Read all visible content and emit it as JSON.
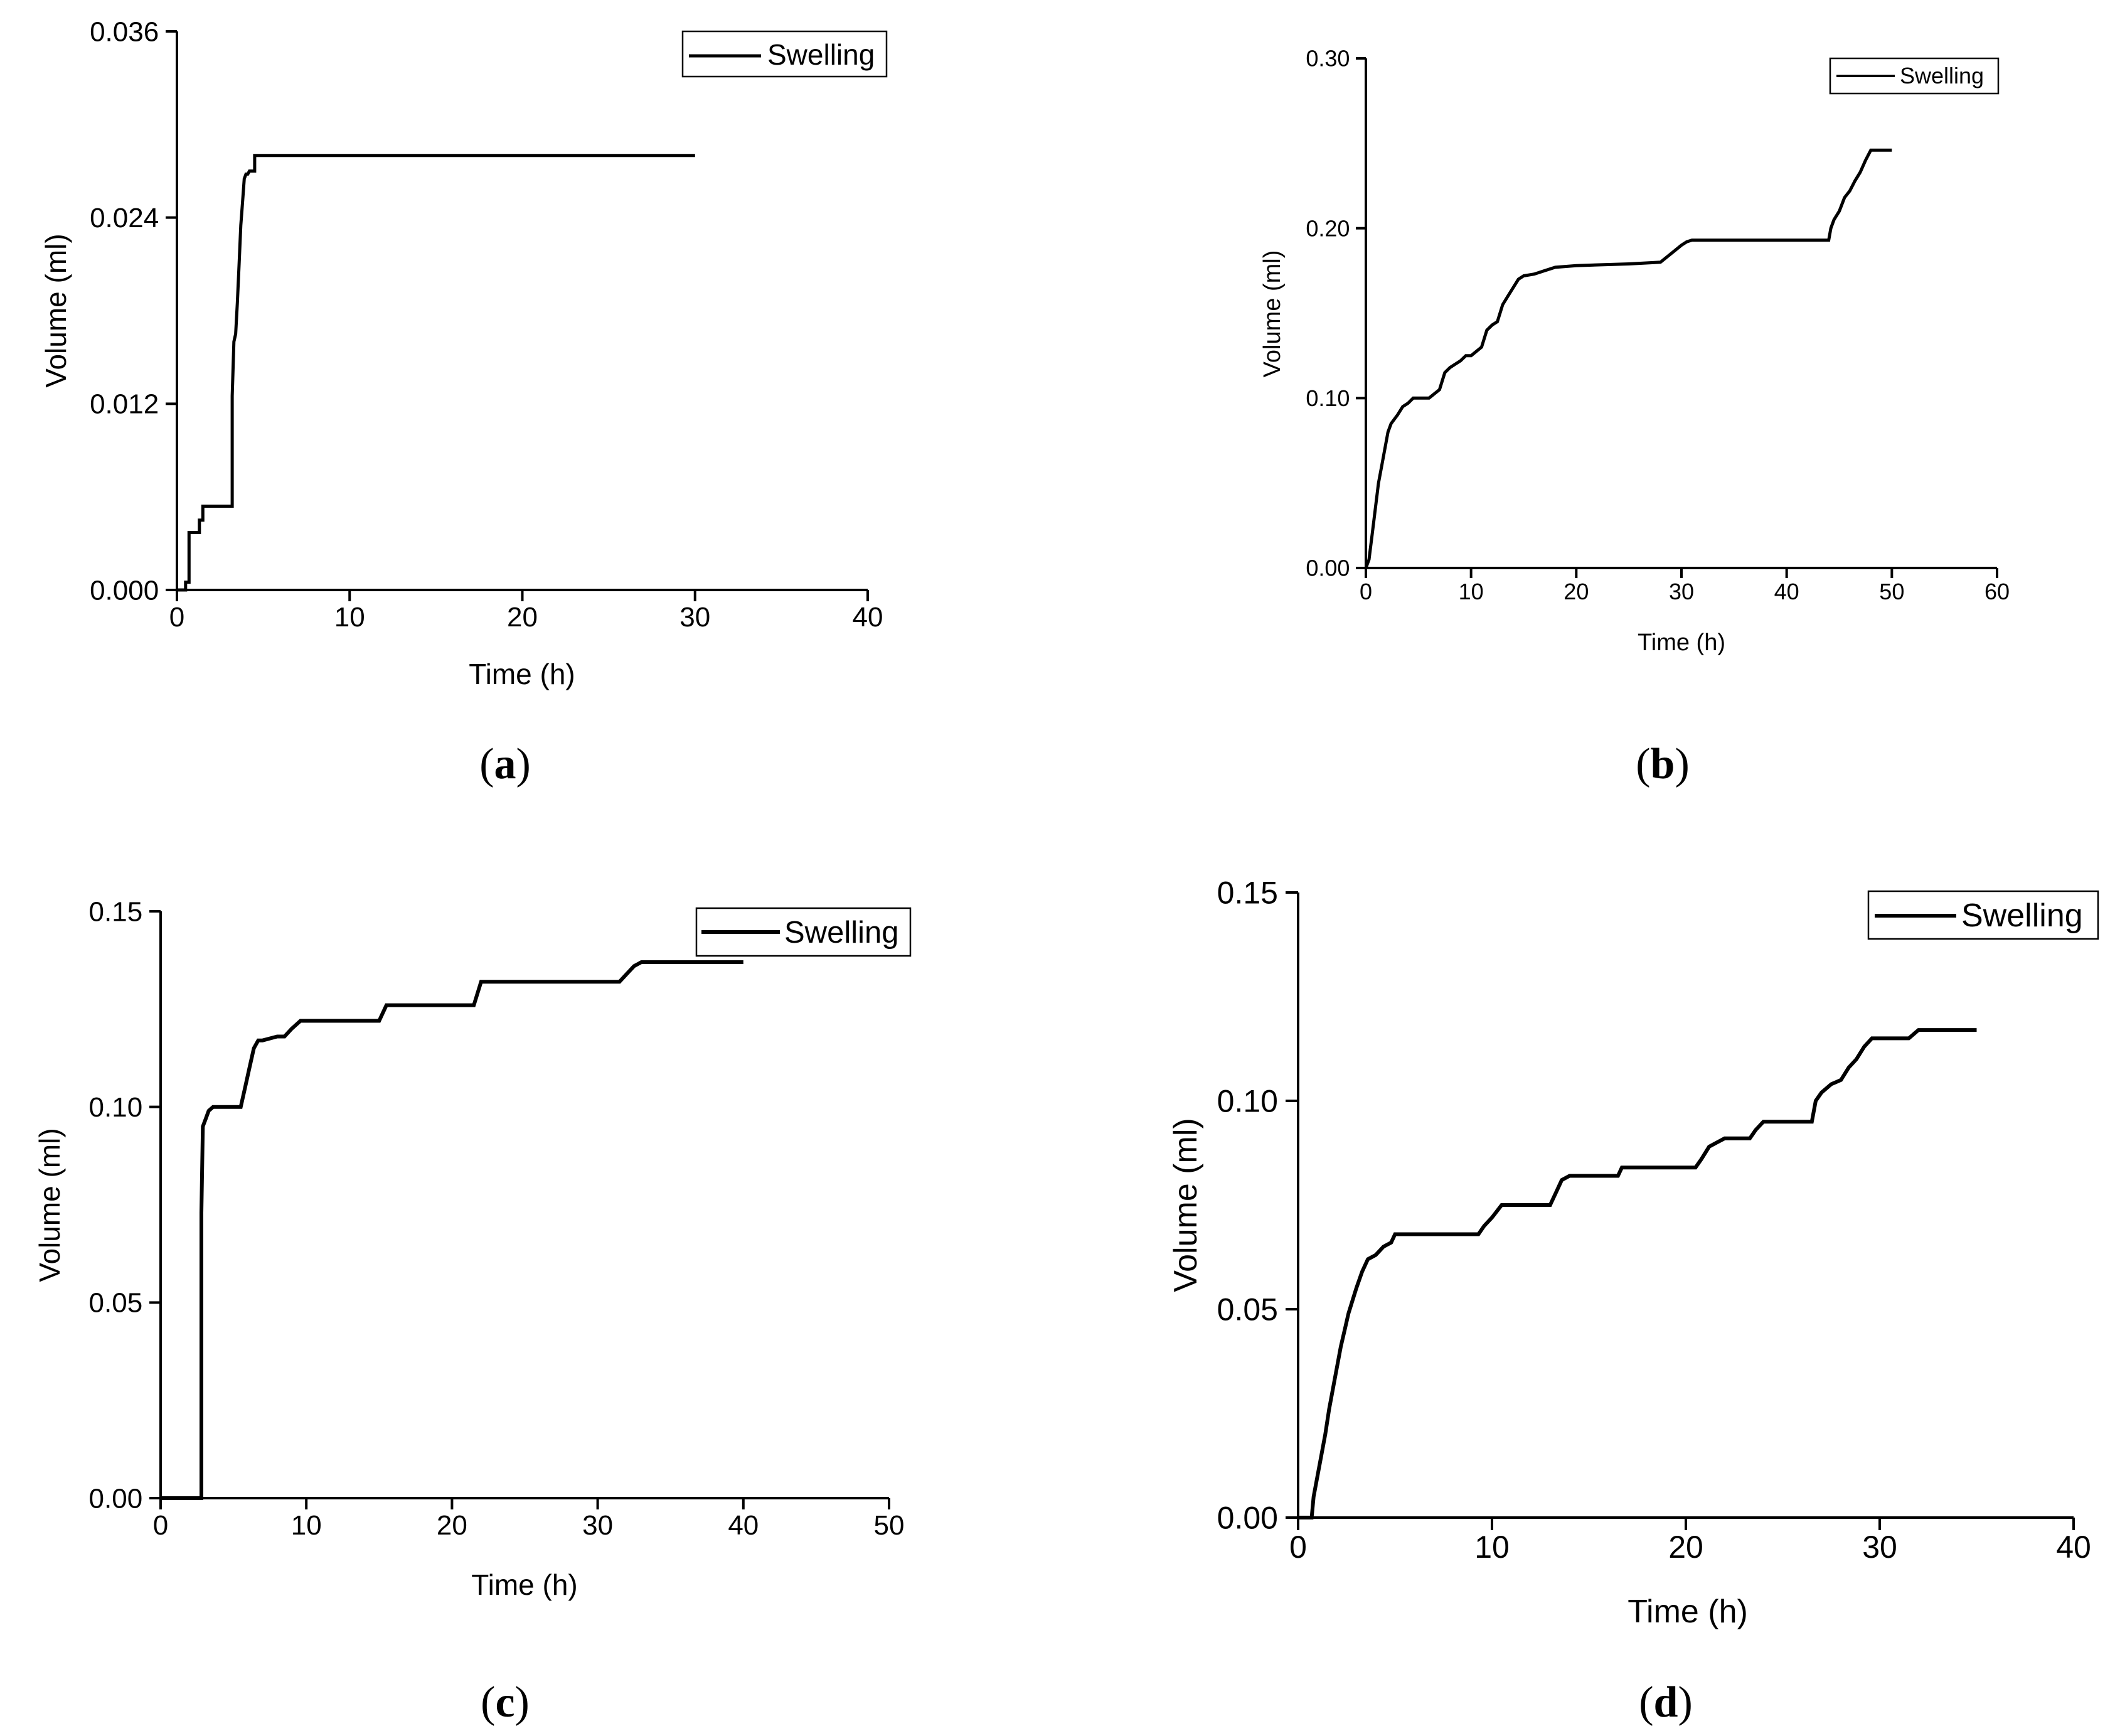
{
  "chart_data": [
    {
      "type": "line",
      "panel": "a",
      "caption_open": "(",
      "caption_letter": "a",
      "caption_close": ")",
      "xlabel": "Time (h)",
      "ylabel": "Volume (ml)",
      "xlim": [
        0,
        40
      ],
      "ylim": [
        0,
        0.036
      ],
      "xticks": [
        0,
        10,
        20,
        30,
        40
      ],
      "yticks": [
        0.0,
        0.012,
        0.024,
        0.036
      ],
      "ytick_labels": [
        "0.000",
        "0.012",
        "0.024",
        "0.036"
      ],
      "legend": [
        "Swelling"
      ],
      "legend_position": "top-right",
      "series": [
        {
          "name": "Swelling",
          "x": [
            0,
            0.5,
            0.5,
            0.7,
            0.7,
            1.3,
            1.3,
            1.5,
            1.5,
            3.2,
            3.2,
            3.3,
            3.4,
            3.5,
            3.6,
            3.7,
            3.8,
            3.9,
            4.0,
            4.1,
            4.2,
            4.3,
            4.5,
            4.5,
            30
          ],
          "y": [
            0,
            0,
            0.0005,
            0.0005,
            0.0037,
            0.0037,
            0.0045,
            0.0045,
            0.0054,
            0.0054,
            0.0125,
            0.016,
            0.0165,
            0.0185,
            0.021,
            0.0235,
            0.025,
            0.0265,
            0.0268,
            0.0268,
            0.027,
            0.027,
            0.027,
            0.028,
            0.028
          ]
        }
      ]
    },
    {
      "type": "line",
      "panel": "b",
      "caption_open": "(",
      "caption_letter": "b",
      "caption_close": ")",
      "xlabel": "Time (h)",
      "ylabel": "Volume (ml)",
      "xlim": [
        0,
        60
      ],
      "ylim": [
        0,
        0.3
      ],
      "xticks": [
        0,
        10,
        20,
        30,
        40,
        50,
        60
      ],
      "yticks": [
        0.0,
        0.1,
        0.2,
        0.3
      ],
      "ytick_labels": [
        "0.00",
        "0.10",
        "0.20",
        "0.30"
      ],
      "legend": [
        "Swelling"
      ],
      "legend_position": "top-right",
      "series": [
        {
          "name": "Swelling",
          "x": [
            0,
            0.3,
            0.6,
            0.9,
            1.2,
            1.5,
            1.8,
            2.1,
            2.4,
            3,
            3.5,
            4,
            4.5,
            5,
            6,
            7,
            7.5,
            8,
            8.5,
            9,
            9.5,
            10,
            11,
            11.5,
            12,
            12.5,
            13,
            13.5,
            14,
            14.5,
            15,
            16,
            17,
            18,
            20,
            25,
            28,
            29,
            30,
            30.5,
            31,
            35,
            40,
            44,
            44.2,
            44.5,
            45,
            45.5,
            46,
            46.5,
            47,
            47.5,
            48,
            49,
            50
          ],
          "y": [
            0,
            0.005,
            0.02,
            0.035,
            0.05,
            0.06,
            0.07,
            0.08,
            0.085,
            0.09,
            0.095,
            0.097,
            0.1,
            0.1,
            0.1,
            0.105,
            0.115,
            0.118,
            0.12,
            0.122,
            0.125,
            0.125,
            0.13,
            0.14,
            0.143,
            0.145,
            0.155,
            0.16,
            0.165,
            0.17,
            0.172,
            0.173,
            0.175,
            0.177,
            0.178,
            0.179,
            0.18,
            0.185,
            0.19,
            0.192,
            0.193,
            0.193,
            0.193,
            0.193,
            0.2,
            0.205,
            0.21,
            0.218,
            0.222,
            0.228,
            0.233,
            0.24,
            0.246,
            0.246,
            0.246
          ]
        }
      ]
    },
    {
      "type": "line",
      "panel": "c",
      "caption_open": "(",
      "caption_letter": "c",
      "caption_close": ")",
      "xlabel": "Time (h)",
      "ylabel": "Volume (ml)",
      "xlim": [
        0,
        50
      ],
      "ylim": [
        0,
        0.15
      ],
      "xticks": [
        0,
        10,
        20,
        30,
        40,
        50
      ],
      "yticks": [
        0.0,
        0.05,
        0.1,
        0.15
      ],
      "ytick_labels": [
        "0.00",
        "0.05",
        "0.10",
        "0.15"
      ],
      "legend": [
        "Swelling"
      ],
      "legend_position": "top-right",
      "series": [
        {
          "name": "Swelling",
          "x": [
            0,
            2.8,
            2.8,
            2.9,
            3.1,
            3.3,
            3.6,
            4,
            5.5,
            5.8,
            6.1,
            6.4,
            6.7,
            7,
            8,
            8.5,
            9,
            9.3,
            9.6,
            10,
            15,
            15.5,
            21.5,
            22,
            31.5,
            32,
            32.5,
            33,
            40
          ],
          "y": [
            0,
            0,
            0.073,
            0.095,
            0.097,
            0.099,
            0.1,
            0.1,
            0.1,
            0.105,
            0.11,
            0.115,
            0.117,
            0.117,
            0.118,
            0.118,
            0.12,
            0.121,
            0.122,
            0.122,
            0.122,
            0.126,
            0.126,
            0.132,
            0.132,
            0.134,
            0.136,
            0.137,
            0.137
          ]
        }
      ]
    },
    {
      "type": "line",
      "panel": "d",
      "caption_open": "(",
      "caption_letter": "d",
      "caption_close": ")",
      "xlabel": "Time (h)",
      "ylabel": "Volume (ml)",
      "xlim": [
        0,
        40
      ],
      "ylim": [
        0,
        0.15
      ],
      "xticks": [
        0,
        10,
        20,
        30,
        40
      ],
      "yticks": [
        0.0,
        0.05,
        0.1,
        0.15
      ],
      "ytick_labels": [
        "0.00",
        "0.05",
        "0.10",
        "0.15"
      ],
      "legend": [
        "Swelling"
      ],
      "legend_position": "top-right",
      "series": [
        {
          "name": "Swelling",
          "x": [
            0,
            0.7,
            0.8,
            1.0,
            1.2,
            1.4,
            1.6,
            1.8,
            2.0,
            2.2,
            2.4,
            2.6,
            2.8,
            3.0,
            3.3,
            3.6,
            4.0,
            4.4,
            4.8,
            5.0,
            9.3,
            9.6,
            10,
            10.5,
            13,
            13.3,
            13.6,
            14,
            16.5,
            16.7,
            20.5,
            20.8,
            21.2,
            21.6,
            22,
            23.3,
            23.6,
            24,
            26.5,
            26.7,
            27,
            27.5,
            28,
            28.4,
            28.8,
            29.2,
            29.6,
            30,
            31.5,
            32,
            35
          ],
          "y": [
            0,
            0,
            0.005,
            0.01,
            0.015,
            0.02,
            0.026,
            0.031,
            0.036,
            0.041,
            0.045,
            0.049,
            0.052,
            0.055,
            0.059,
            0.062,
            0.063,
            0.065,
            0.066,
            0.068,
            0.068,
            0.07,
            0.072,
            0.075,
            0.075,
            0.078,
            0.081,
            0.082,
            0.082,
            0.084,
            0.084,
            0.086,
            0.089,
            0.09,
            0.091,
            0.091,
            0.093,
            0.095,
            0.095,
            0.1,
            0.102,
            0.104,
            0.105,
            0.108,
            0.11,
            0.113,
            0.115,
            0.115,
            0.115,
            0.117,
            0.117
          ]
        }
      ]
    }
  ]
}
